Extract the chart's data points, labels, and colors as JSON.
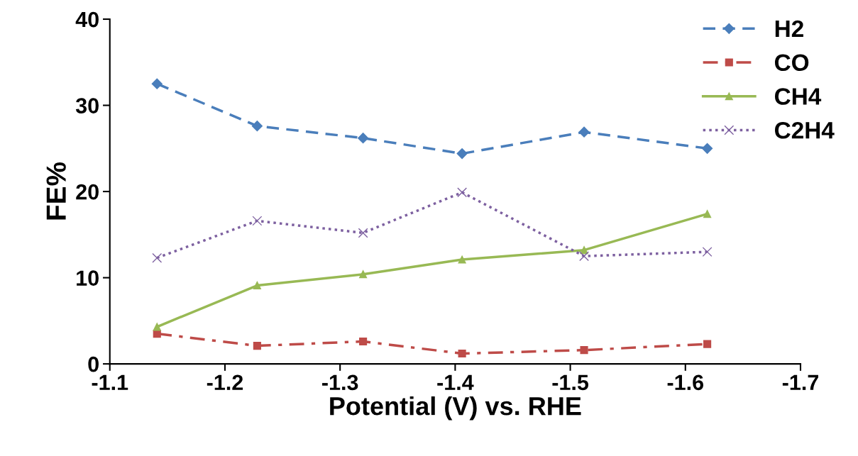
{
  "chart_data": {
    "type": "line",
    "xlabel": "Potential (V) vs. RHE",
    "ylabel": "FE%",
    "x": [
      -1.141,
      -1.228,
      -1.32,
      -1.406,
      -1.512,
      -1.619
    ],
    "series": [
      {
        "name": "H2",
        "color": "#4a7ebb",
        "marker": "diamond",
        "line_style": "dashed",
        "values": [
          32.5,
          27.6,
          26.2,
          24.4,
          26.9,
          25.0
        ]
      },
      {
        "name": "CO",
        "color": "#be4b48",
        "marker": "square",
        "line_style": "dashdot",
        "values": [
          3.5,
          2.1,
          2.6,
          1.2,
          1.6,
          2.3
        ]
      },
      {
        "name": "CH4",
        "color": "#98b954",
        "marker": "triangle",
        "line_style": "solid",
        "values": [
          4.3,
          9.1,
          10.4,
          12.1,
          13.2,
          17.4
        ]
      },
      {
        "name": "C2H4",
        "color": "#7d60a0",
        "marker": "cross",
        "line_style": "dotted",
        "values": [
          12.3,
          16.6,
          15.2,
          19.9,
          12.5,
          13.0
        ]
      }
    ],
    "xlim": [
      -1.1,
      -1.7
    ],
    "xticks": [
      -1.1,
      -1.2,
      -1.3,
      -1.4,
      -1.5,
      -1.6,
      -1.7
    ],
    "ylim": [
      0,
      40
    ],
    "yticks": [
      0,
      10,
      20,
      30,
      40
    ],
    "grid": false,
    "legend": "top right"
  }
}
